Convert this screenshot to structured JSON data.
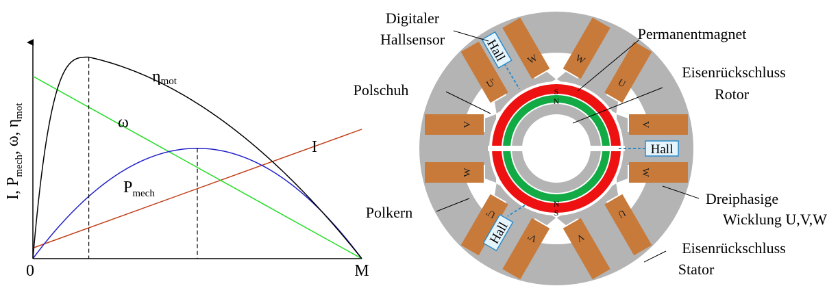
{
  "chart_data": {
    "type": "line",
    "xlabel": "M",
    "origin_label": "0",
    "ylabel": {
      "base": "I, P",
      "sub1": "mech",
      "mid1": ", ω, η",
      "sub2": "mot"
    },
    "series": [
      {
        "name": "I",
        "color": "#c0401a",
        "x": [
          0,
          1
        ],
        "y": [
          0.05,
          0.61
        ]
      },
      {
        "name": "ω",
        "color": "#22dd22",
        "x": [
          0,
          1
        ],
        "y": [
          0.86,
          0.0
        ]
      },
      {
        "name": "P_mech",
        "color": "#2020c8",
        "peak_x": 0.5,
        "peak_y": 0.52
      },
      {
        "name": "η_mot",
        "color": "#000000",
        "peak_x": 0.17,
        "peak_y": 0.95
      }
    ],
    "markers": [
      {
        "of": "η_mot peak",
        "x": 0.17
      },
      {
        "of": "P_mech peak",
        "x": 0.5
      }
    ],
    "labels": {
      "eta": {
        "base": "η",
        "sub": "mot"
      },
      "omega": "ω",
      "pmech": {
        "base": "P",
        "sub": "mech"
      },
      "current": "I"
    }
  },
  "diagram": {
    "callouts": {
      "digital_hall": [
        "Digitaler",
        "Hallsensor"
      ],
      "permanent_magnet": "Permanentmagnet",
      "rotor_yoke": [
        "Eisenrückschluss",
        "Rotor"
      ],
      "pole_shoe": "Polschuh",
      "winding": [
        "Dreiphasige",
        "Wicklung U,V,W"
      ],
      "pole_core": "Polkern",
      "stator_yoke": [
        "Eisenrückschluss",
        "Stator"
      ]
    },
    "hall_label": "Hall",
    "magnet_labels": {
      "south": "S",
      "north": "N"
    },
    "coil_labels": [
      "U",
      "W",
      "W",
      "V",
      "V",
      "U",
      "U'",
      "V'",
      "V",
      "W",
      "W",
      "U'"
    ],
    "colors": {
      "stator": "#b4b4b4",
      "copper": "#c87a3a",
      "magnet_red": "#ee1111",
      "magnet_green": "#11aa44",
      "hall_box": "#e6f4fb",
      "hall_border": "#2a8acb"
    }
  }
}
